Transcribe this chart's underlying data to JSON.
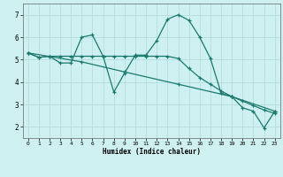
{
  "xlabel": "Humidex (Indice chaleur)",
  "ylabel": "",
  "background_color": "#cff0f0",
  "grid_color": "#b8e0e0",
  "line_color": "#1a7a6e",
  "x_ticks": [
    0,
    1,
    2,
    3,
    4,
    5,
    6,
    7,
    8,
    9,
    10,
    11,
    12,
    13,
    14,
    15,
    16,
    17,
    18,
    19,
    20,
    21,
    22,
    23
  ],
  "y_ticks": [
    2,
    3,
    4,
    5,
    6,
    7
  ],
  "xlim": [
    -0.5,
    23.5
  ],
  "ylim": [
    1.5,
    7.5
  ],
  "line1_x": [
    0,
    1,
    2,
    3,
    4,
    5,
    6,
    7,
    8,
    9,
    10,
    11,
    12,
    13,
    14,
    15,
    16,
    17,
    18,
    19,
    20,
    21,
    22,
    23
  ],
  "line1_y": [
    5.3,
    5.1,
    5.15,
    4.85,
    4.85,
    6.0,
    6.1,
    5.15,
    3.55,
    4.4,
    5.2,
    5.2,
    5.85,
    6.8,
    7.0,
    6.75,
    6.0,
    5.05,
    3.5,
    3.35,
    2.85,
    2.7,
    1.95,
    2.7
  ],
  "line2_x": [
    0,
    1,
    2,
    3,
    4,
    5,
    6,
    7,
    8,
    9,
    10,
    11,
    12,
    13,
    14,
    15,
    16,
    17,
    18,
    19,
    20,
    21,
    22,
    23
  ],
  "line2_y": [
    5.3,
    5.1,
    5.15,
    5.15,
    5.15,
    5.15,
    5.15,
    5.15,
    5.15,
    5.15,
    5.15,
    5.15,
    5.15,
    5.15,
    5.05,
    4.6,
    4.2,
    3.9,
    3.6,
    3.35,
    3.15,
    2.95,
    2.75,
    2.6
  ],
  "line3_x": [
    0,
    5,
    9,
    14,
    19,
    23
  ],
  "line3_y": [
    5.3,
    4.9,
    4.45,
    3.9,
    3.35,
    2.7
  ]
}
